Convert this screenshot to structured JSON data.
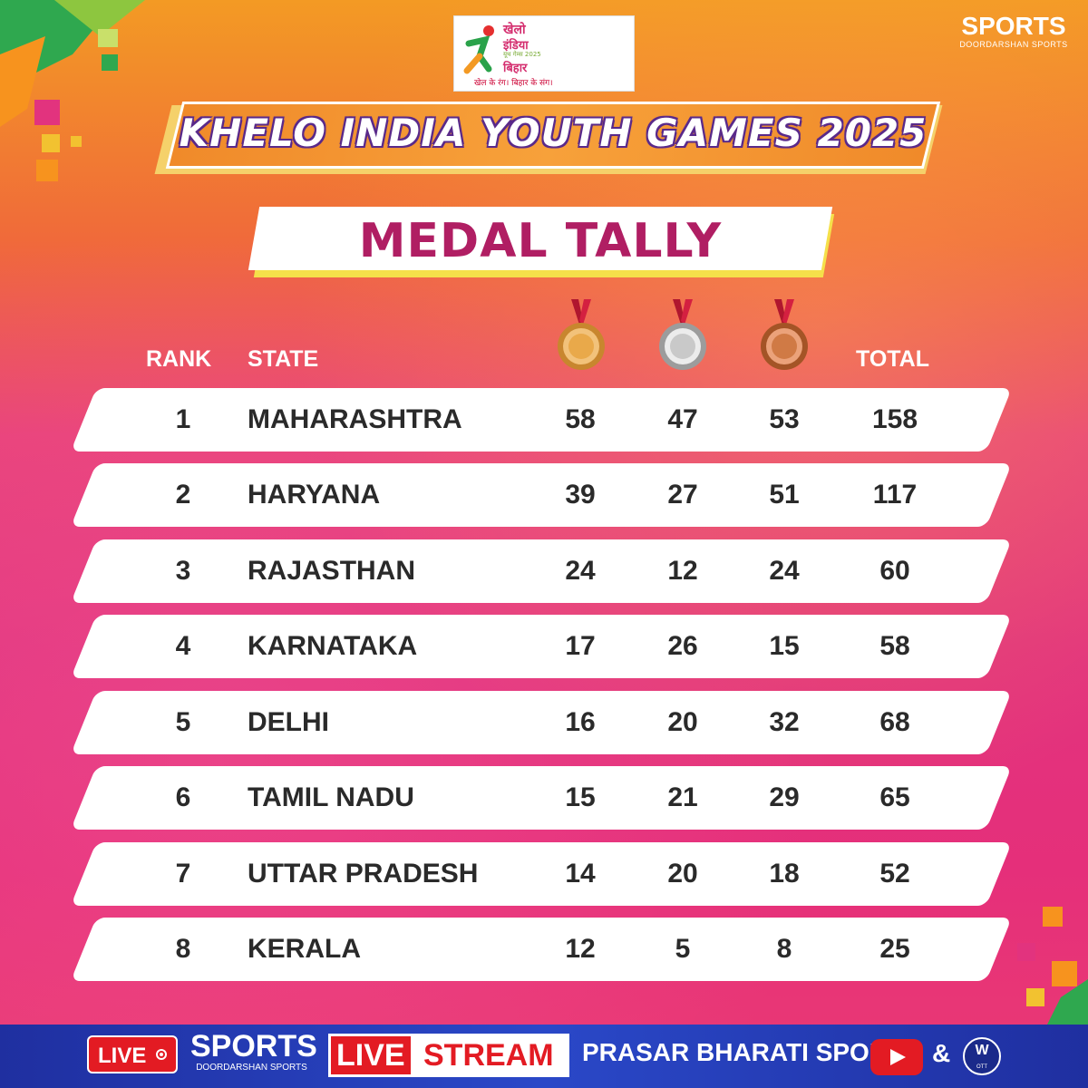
{
  "logo": {
    "line1": "खेलो",
    "line2": "इंडिया",
    "line3": "यूथ गेम्स 2025",
    "line4": "बिहार",
    "tagline": "खेल के रंग। बिहार के संग।"
  },
  "brand": {
    "sports": "SPORTS",
    "sub": "DOORDARSHAN SPORTS"
  },
  "title": "KHELO INDIA YOUTH GAMES 2025",
  "subtitle": "MEDAL TALLY",
  "table": {
    "headers": {
      "rank": "RANK",
      "state": "STATE",
      "total": "TOTAL"
    },
    "medal_icons": [
      "gold-medal-icon",
      "silver-medal-icon",
      "bronze-medal-icon"
    ],
    "rows": [
      {
        "rank": "1",
        "state": "MAHARASHTRA",
        "gold": "58",
        "silver": "47",
        "bronze": "53",
        "total": "158"
      },
      {
        "rank": "2",
        "state": "HARYANA",
        "gold": "39",
        "silver": "27",
        "bronze": "51",
        "total": "117"
      },
      {
        "rank": "3",
        "state": "RAJASTHAN",
        "gold": "24",
        "silver": "12",
        "bronze": "24",
        "total": "60"
      },
      {
        "rank": "4",
        "state": "KARNATAKA",
        "gold": "17",
        "silver": "26",
        "bronze": "15",
        "total": "58"
      },
      {
        "rank": "5",
        "state": "DELHI",
        "gold": "16",
        "silver": "20",
        "bronze": "32",
        "total": "68"
      },
      {
        "rank": "6",
        "state": "TAMIL NADU",
        "gold": "15",
        "silver": "21",
        "bronze": "29",
        "total": "65"
      },
      {
        "rank": "7",
        "state": "UTTAR PRADESH",
        "gold": "14",
        "silver": "20",
        "bronze": "18",
        "total": "52"
      },
      {
        "rank": "8",
        "state": "KERALA",
        "gold": "12",
        "silver": "5",
        "bronze": "8",
        "total": "25"
      }
    ]
  },
  "footer": {
    "live": "LIVE",
    "sports": "SPORTS",
    "sports_sub": "DOORDARSHAN SPORTS",
    "stream_live": "LIVE",
    "stream_word": "STREAM",
    "channel": "PRASAR BHARATI SPORTS",
    "amp": "&",
    "ott": "OTT"
  },
  "colors": {
    "gold": "#e9a94a",
    "silver": "#c9c9c9",
    "bronze": "#d07a45",
    "title_text": "#b01e63"
  }
}
